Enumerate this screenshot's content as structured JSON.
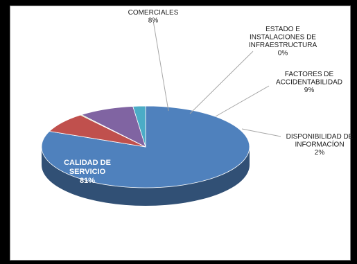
{
  "chart_data": {
    "type": "pie",
    "title": "",
    "slices": [
      {
        "name": "CALIDAD DE SERVICIO",
        "label_lines": [
          "CALIDAD DE",
          "SERVICIO"
        ],
        "pct_label": "81%",
        "value": 81,
        "color": "#4f81bd"
      },
      {
        "name": "COMERCIALES",
        "label_lines": [
          "COMERCIALES"
        ],
        "pct_label": "8%",
        "value": 8,
        "color": "#c0504d"
      },
      {
        "name": "ESTADO E INSTALACIONES DE INFRAESTRUCTURA",
        "label_lines": [
          "ESTADO E",
          "INSTALACIONES DE",
          "INFRAESTRUCTURA"
        ],
        "pct_label": "0%",
        "value": 0,
        "color": "#9bbb59"
      },
      {
        "name": "FACTORES DE ACCIDENTABILIDAD",
        "label_lines": [
          "FACTORES DE",
          "ACCIDENTABILIDAD"
        ],
        "pct_label": "9%",
        "value": 9,
        "color": "#8064a2"
      },
      {
        "name": "DISPONIBILIDAD DE INFORMACÍON",
        "label_lines": [
          "DISPONIBILIDAD DE",
          "INFORMACÍON"
        ],
        "pct_label": "2%",
        "value": 2,
        "color": "#4bacc6"
      }
    ],
    "legend": "none",
    "style": "3d-pie"
  }
}
